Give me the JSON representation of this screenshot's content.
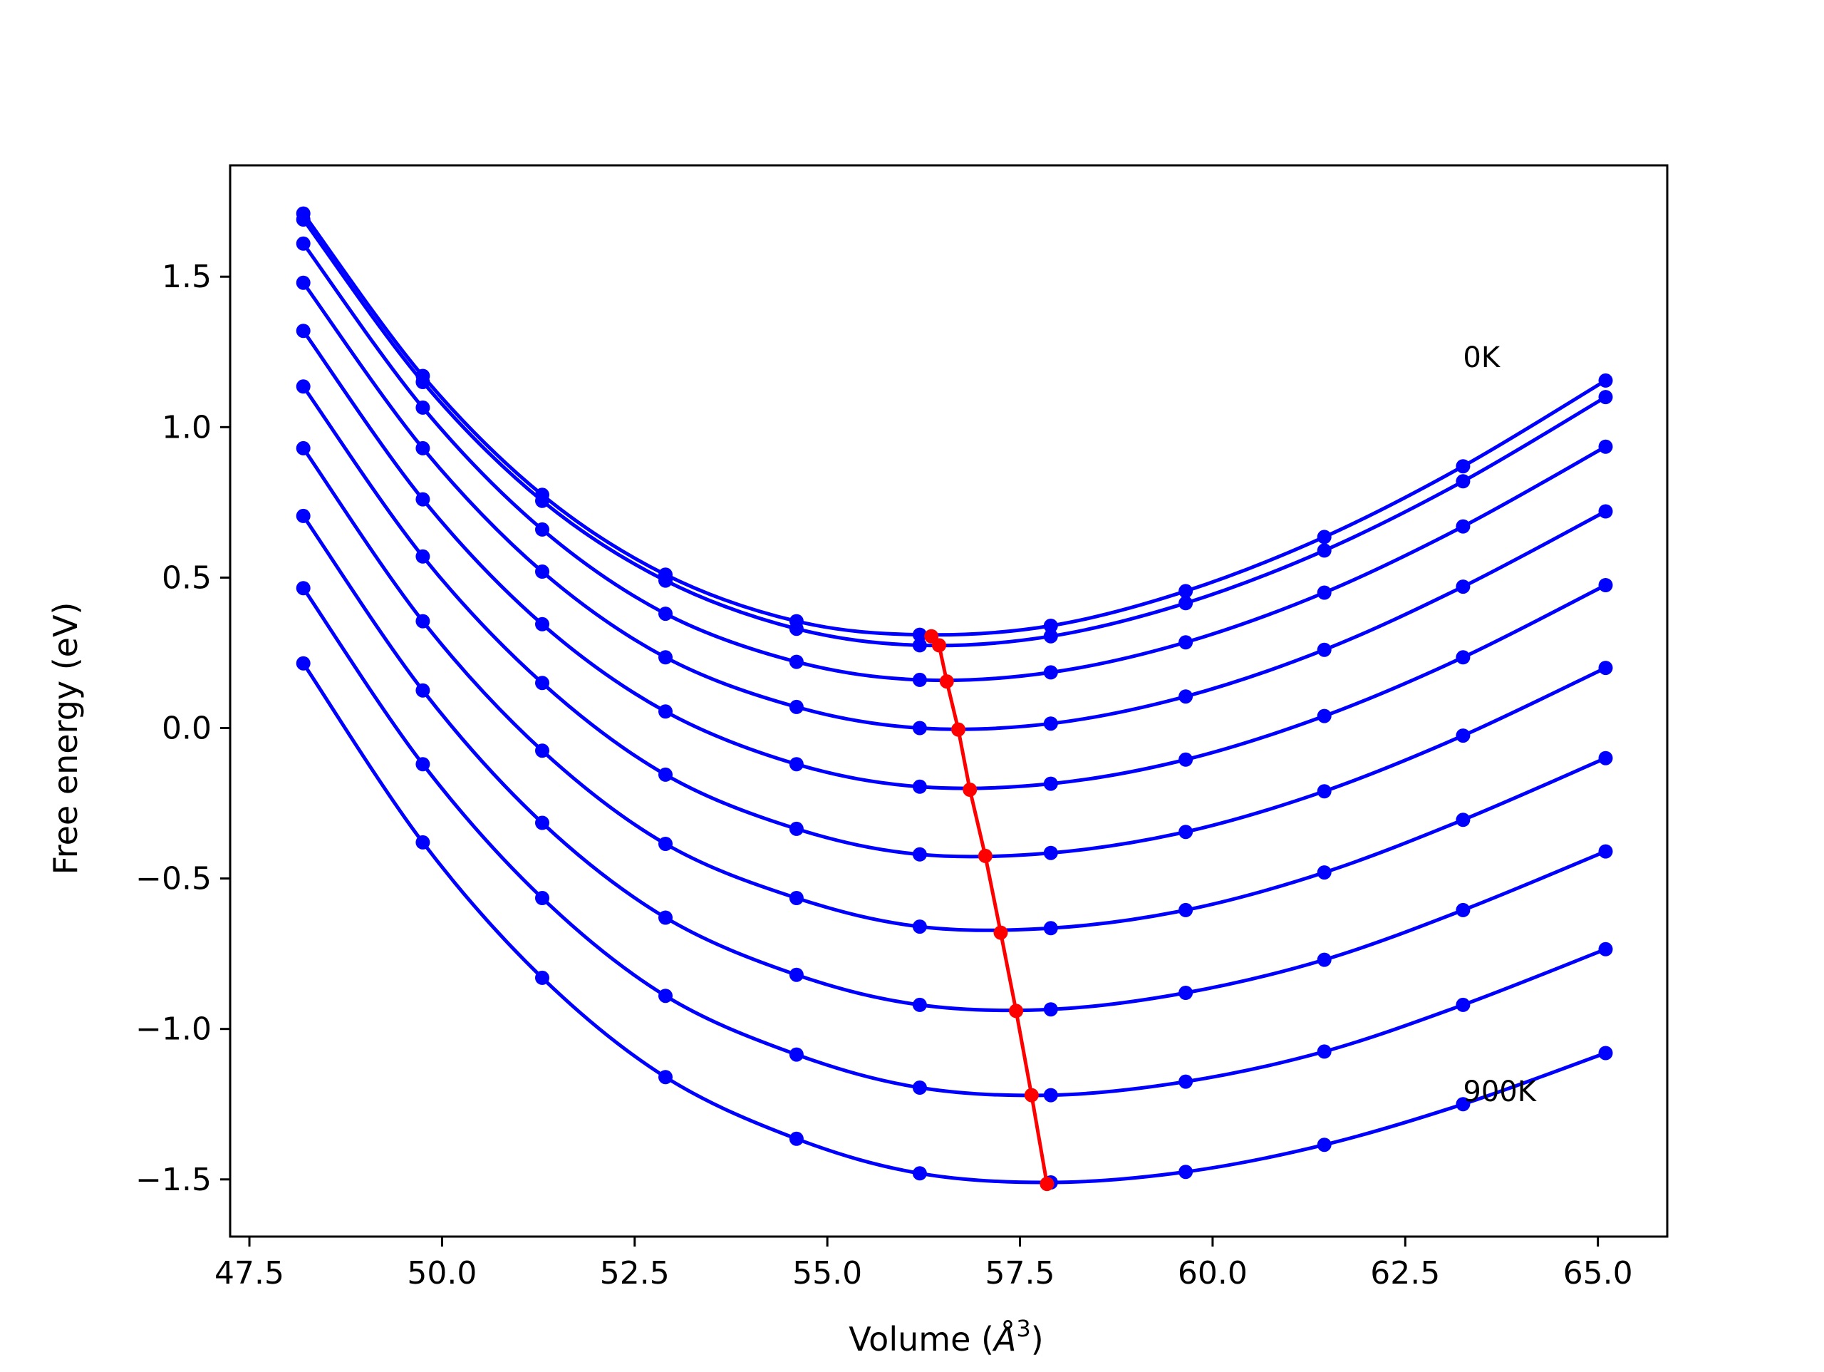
{
  "chart_data": {
    "type": "line",
    "title": "",
    "xlabel": "Volume (",
    "xlabel_unit": "Å",
    "xlabel_sup": "3",
    "xlabel_close": ")",
    "ylabel": "Free energy (eV)",
    "xlim": [
      47.25,
      65.9
    ],
    "ylim": [
      -1.69,
      1.87
    ],
    "xticks": [
      47.5,
      50.0,
      52.5,
      55.0,
      57.5,
      60.0,
      62.5,
      65.0
    ],
    "xtick_labels": [
      "47.5",
      "50.0",
      "52.5",
      "55.0",
      "57.5",
      "60.0",
      "62.5",
      "65.0"
    ],
    "yticks": [
      -1.5,
      -1.0,
      -0.5,
      0.0,
      0.5,
      1.0,
      1.5
    ],
    "ytick_labels": [
      "−1.5",
      "−1.0",
      "−0.5",
      "0.0",
      "0.5",
      "1.0",
      "1.5"
    ],
    "grid": false,
    "legend": "none",
    "colors": {
      "curves": "#0000ff",
      "minima": "#ff0000",
      "axes": "#000000"
    },
    "x": [
      48.2,
      49.75,
      51.3,
      52.9,
      54.6,
      56.2,
      57.9,
      59.65,
      61.45,
      63.25,
      65.1
    ],
    "series": [
      {
        "values": [
          1.71,
          1.17,
          0.775,
          0.51,
          0.355,
          0.31,
          0.34,
          0.455,
          0.635,
          0.87,
          1.155
        ]
      },
      {
        "values": [
          1.69,
          1.15,
          0.755,
          0.49,
          0.33,
          0.275,
          0.305,
          0.415,
          0.59,
          0.82,
          1.1
        ]
      },
      {
        "values": [
          1.61,
          1.065,
          0.66,
          0.38,
          0.22,
          0.16,
          0.185,
          0.285,
          0.45,
          0.67,
          0.935
        ]
      },
      {
        "values": [
          1.48,
          0.93,
          0.52,
          0.235,
          0.07,
          0.0,
          0.015,
          0.105,
          0.26,
          0.47,
          0.72
        ]
      },
      {
        "values": [
          1.32,
          0.76,
          0.345,
          0.055,
          -0.12,
          -0.195,
          -0.185,
          -0.105,
          0.04,
          0.235,
          0.475
        ]
      },
      {
        "values": [
          1.135,
          0.57,
          0.15,
          -0.155,
          -0.335,
          -0.42,
          -0.415,
          -0.345,
          -0.21,
          -0.025,
          0.2
        ]
      },
      {
        "values": [
          0.93,
          0.355,
          -0.075,
          -0.385,
          -0.565,
          -0.66,
          -0.665,
          -0.605,
          -0.48,
          -0.305,
          -0.1
        ]
      },
      {
        "values": [
          0.705,
          0.125,
          -0.315,
          -0.63,
          -0.82,
          -0.92,
          -0.935,
          -0.88,
          -0.77,
          -0.605,
          -0.41
        ]
      },
      {
        "values": [
          0.465,
          -0.12,
          -0.565,
          -0.89,
          -1.085,
          -1.195,
          -1.22,
          -1.175,
          -1.075,
          -0.92,
          -0.735
        ]
      },
      {
        "values": [
          0.215,
          -0.38,
          -0.83,
          -1.16,
          -1.365,
          -1.48,
          -1.51,
          -1.475,
          -1.385,
          -1.25,
          -1.08
        ]
      }
    ],
    "minima": {
      "x": [
        56.35,
        56.45,
        56.55,
        56.7,
        56.85,
        57.05,
        57.25,
        57.45,
        57.65,
        57.85
      ],
      "y": [
        0.305,
        0.275,
        0.155,
        -0.005,
        -0.205,
        -0.425,
        -0.68,
        -0.94,
        -1.22,
        -1.515
      ]
    },
    "annotations": [
      {
        "text": "0K",
        "x": 63.25,
        "y": 1.2
      },
      {
        "text": "900K",
        "x": 63.25,
        "y": -1.24
      }
    ]
  }
}
